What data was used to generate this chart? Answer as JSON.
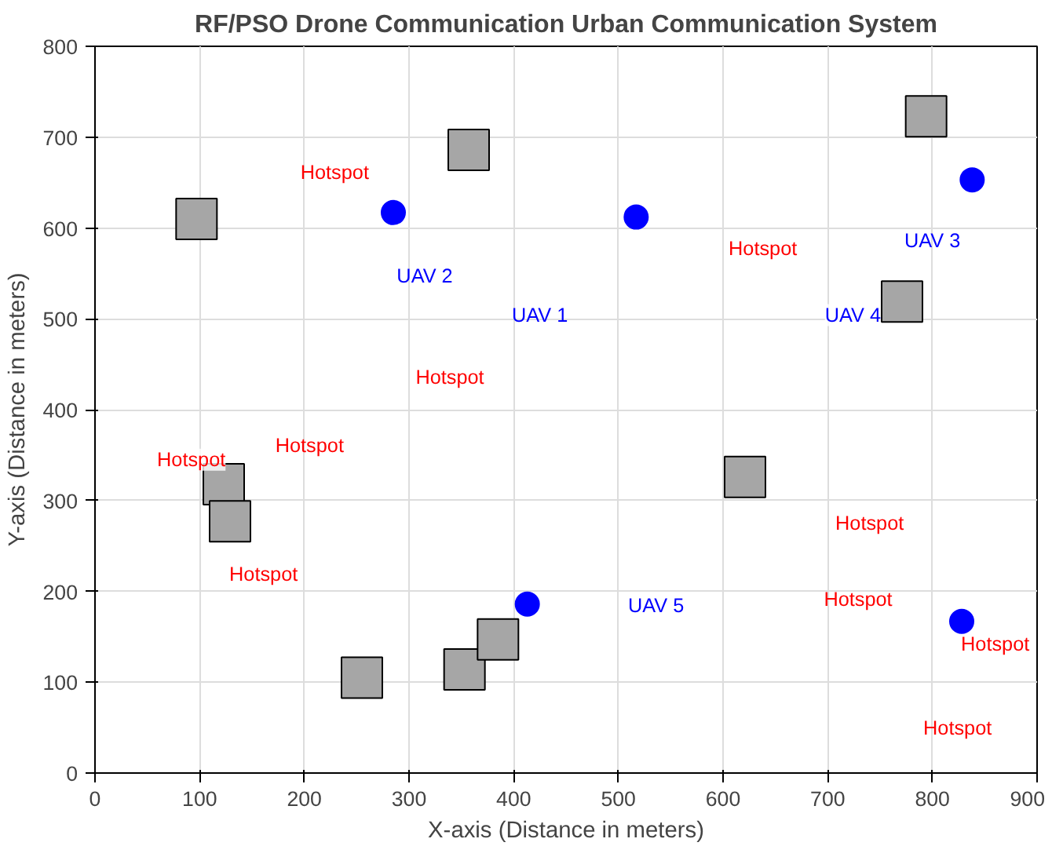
{
  "chart_data": {
    "type": "scatter",
    "title": "RF/PSO Drone Communication Urban Communication System",
    "xlabel": "X-axis (Distance in meters)",
    "ylabel": "Y-axis (Distance in meters)",
    "xlim": [
      0,
      900
    ],
    "ylim": [
      0,
      800
    ],
    "xticks": [
      0,
      100,
      200,
      300,
      400,
      500,
      600,
      700,
      800,
      900
    ],
    "yticks": [
      0,
      100,
      200,
      300,
      400,
      500,
      600,
      700,
      800
    ],
    "grid": true,
    "series": [
      {
        "color": "#a6a6a6",
        "marker": "square",
        "x": [
          97,
          357,
          794,
          771,
          621,
          123,
          129,
          255,
          353,
          385
        ],
        "values": [
          610,
          686,
          723,
          519,
          326,
          318,
          277,
          105,
          114,
          147
        ]
      },
      {
        "color": "#0000ff",
        "marker": "circle",
        "x": [
          285,
          517,
          838,
          413,
          828
        ],
        "values": [
          617,
          612,
          653,
          186,
          167
        ]
      }
    ],
    "annotations": [
      "UAV 1",
      "UAV 2",
      "UAV 3",
      "UAV 4",
      "UAV 5",
      "Hotspot",
      "Hotspot",
      "Hotspot",
      "Hotspot",
      "Hotspot",
      "Hotspot",
      "Hotspot",
      "Hotspot",
      "Hotspot",
      "Hotspot"
    ]
  }
}
